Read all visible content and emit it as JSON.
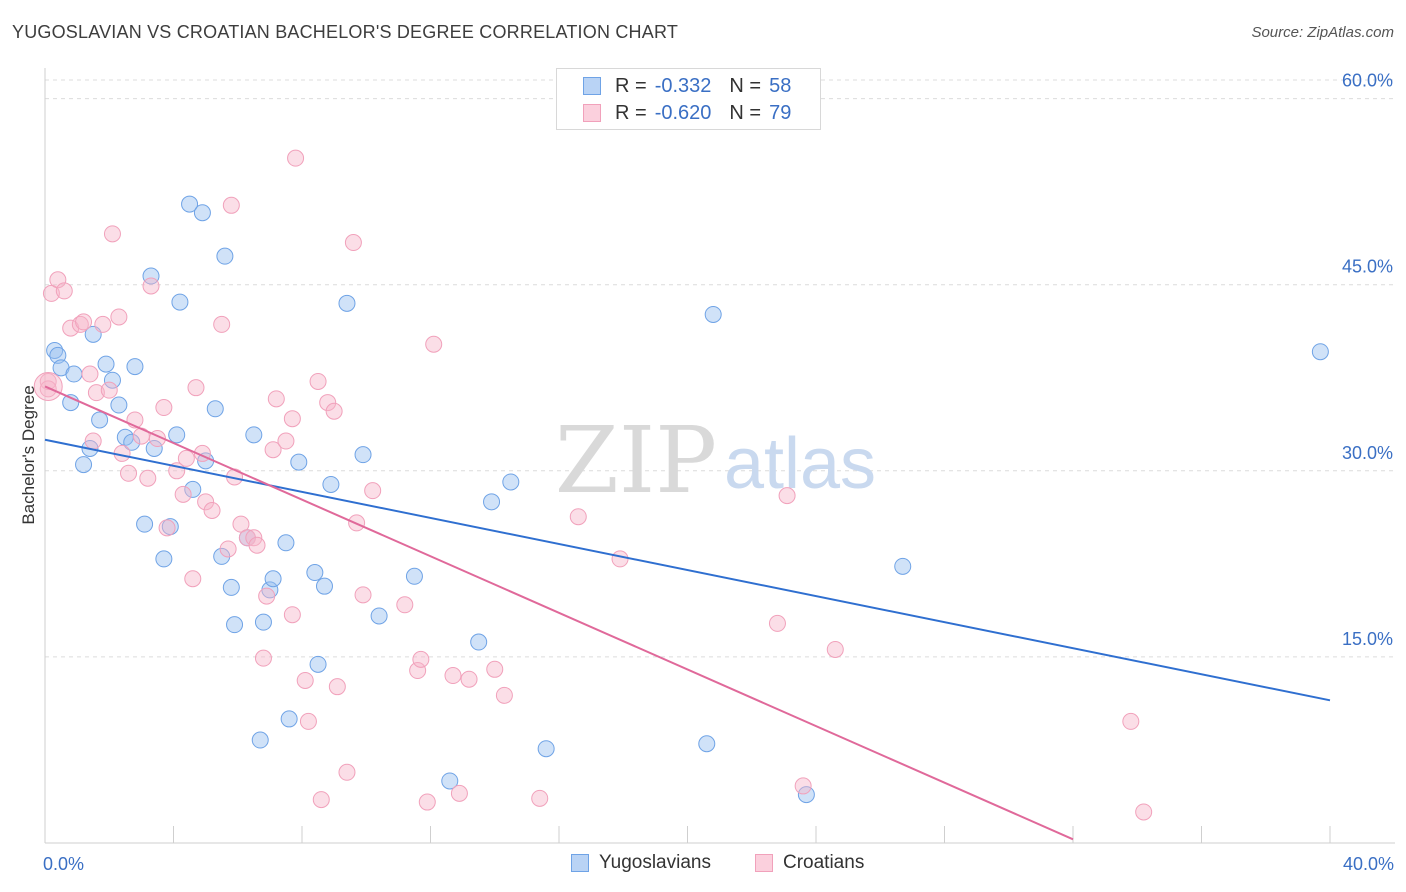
{
  "title": "YUGOSLAVIAN VS CROATIAN BACHELOR'S DEGREE CORRELATION CHART",
  "source": "Source: ZipAtlas.com",
  "watermark": {
    "zip": "ZIP",
    "atlas": "atlas"
  },
  "legend": {
    "series": [
      {
        "r_label": "R =",
        "r_value": "-0.332",
        "n_label": "N =",
        "n_value": "58"
      },
      {
        "r_label": "R =",
        "r_value": "-0.620",
        "n_label": "N =",
        "n_value": "79"
      }
    ]
  },
  "bottom_legend": [
    "Yugoslavians",
    "Croatians"
  ],
  "chart_data": {
    "type": "scatter",
    "title": "YUGOSLAVIAN VS CROATIAN BACHELOR'S DEGREE CORRELATION CHART",
    "xlabel": "",
    "ylabel": "Bachelor's Degree",
    "xlim": [
      0,
      40
    ],
    "ylim": [
      0,
      61.5
    ],
    "x_tick_labels": [
      "0.0%",
      "40.0%"
    ],
    "y_ticks": [
      15,
      30,
      45,
      60
    ],
    "y_tick_labels": [
      "15.0%",
      "30.0%",
      "45.0%",
      "60.0%"
    ],
    "grid": true,
    "colors": {
      "Yugoslavians": "#6fa3e6",
      "Croatians": "#f1a1bb",
      "blue_line": "#2f6fd0",
      "pink_line": "#e0699a",
      "tick_text": "#3a6fc4"
    },
    "series": [
      {
        "name": "Yugoslavians",
        "color": "#6fa3e6",
        "trend": {
          "x": [
            0,
            40
          ],
          "y": [
            32.5,
            11.5
          ]
        },
        "points": [
          [
            0.3,
            39.7
          ],
          [
            0.4,
            39.3
          ],
          [
            0.5,
            38.3
          ],
          [
            0.9,
            37.8
          ],
          [
            0.8,
            35.5
          ],
          [
            1.2,
            30.5
          ],
          [
            1.4,
            31.8
          ],
          [
            1.5,
            41
          ],
          [
            1.7,
            34.1
          ],
          [
            1.9,
            38.6
          ],
          [
            2.1,
            37.3
          ],
          [
            2.3,
            35.3
          ],
          [
            2.5,
            32.7
          ],
          [
            2.7,
            32.3
          ],
          [
            2.8,
            38.4
          ],
          [
            3.1,
            25.7
          ],
          [
            3.3,
            45.7
          ],
          [
            3.4,
            31.8
          ],
          [
            3.7,
            22.9
          ],
          [
            3.9,
            25.5
          ],
          [
            4.1,
            32.9
          ],
          [
            4.2,
            43.6
          ],
          [
            4.5,
            51.5
          ],
          [
            4.6,
            28.5
          ],
          [
            4.9,
            50.8
          ],
          [
            5.0,
            30.8
          ],
          [
            5.3,
            35.0
          ],
          [
            5.5,
            23.1
          ],
          [
            5.6,
            47.3
          ],
          [
            5.8,
            20.6
          ],
          [
            5.9,
            17.6
          ],
          [
            6.3,
            24.6
          ],
          [
            6.5,
            32.9
          ],
          [
            6.7,
            8.3
          ],
          [
            6.8,
            17.8
          ],
          [
            7.0,
            20.4
          ],
          [
            7.1,
            21.3
          ],
          [
            7.5,
            24.2
          ],
          [
            7.6,
            10.0
          ],
          [
            7.9,
            30.7
          ],
          [
            8.4,
            21.8
          ],
          [
            8.5,
            14.4
          ],
          [
            8.7,
            20.7
          ],
          [
            8.9,
            28.9
          ],
          [
            9.4,
            43.5
          ],
          [
            9.9,
            31.3
          ],
          [
            10.4,
            18.3
          ],
          [
            11.5,
            21.5
          ],
          [
            12.6,
            5.0
          ],
          [
            13.5,
            16.2
          ],
          [
            13.9,
            27.5
          ],
          [
            14.5,
            29.1
          ],
          [
            15.6,
            7.6
          ],
          [
            20.6,
            8.0
          ],
          [
            20.8,
            42.6
          ],
          [
            23.7,
            3.9
          ],
          [
            26.7,
            22.3
          ],
          [
            39.7,
            39.6
          ]
        ]
      },
      {
        "name": "Croatians",
        "color": "#f1a1bb",
        "trend": {
          "x": [
            0,
            32
          ],
          "y": [
            36.8,
            0.3
          ]
        },
        "points": [
          [
            0.1,
            37.2
          ],
          [
            0.1,
            36.6
          ],
          [
            0.2,
            44.3
          ],
          [
            0.4,
            45.4
          ],
          [
            0.6,
            44.5
          ],
          [
            0.8,
            41.5
          ],
          [
            1.1,
            41.8
          ],
          [
            1.2,
            42.0
          ],
          [
            1.4,
            37.8
          ],
          [
            1.5,
            32.4
          ],
          [
            1.6,
            36.3
          ],
          [
            1.8,
            41.8
          ],
          [
            2.0,
            36.5
          ],
          [
            2.1,
            49.1
          ],
          [
            2.3,
            42.4
          ],
          [
            2.4,
            31.4
          ],
          [
            2.6,
            29.8
          ],
          [
            2.8,
            34.1
          ],
          [
            3.0,
            32.8
          ],
          [
            3.2,
            29.4
          ],
          [
            3.3,
            44.9
          ],
          [
            3.5,
            32.6
          ],
          [
            3.7,
            35.1
          ],
          [
            3.8,
            25.4
          ],
          [
            4.1,
            30.0
          ],
          [
            4.3,
            28.1
          ],
          [
            4.4,
            31.0
          ],
          [
            4.6,
            21.3
          ],
          [
            4.7,
            36.7
          ],
          [
            4.9,
            31.4
          ],
          [
            5.0,
            27.5
          ],
          [
            5.2,
            26.8
          ],
          [
            5.5,
            41.8
          ],
          [
            5.7,
            23.7
          ],
          [
            5.8,
            51.4
          ],
          [
            5.9,
            29.5
          ],
          [
            6.1,
            25.7
          ],
          [
            6.3,
            24.6
          ],
          [
            6.5,
            24.6
          ],
          [
            6.6,
            24.0
          ],
          [
            6.8,
            14.9
          ],
          [
            6.9,
            19.9
          ],
          [
            7.1,
            31.7
          ],
          [
            7.2,
            35.8
          ],
          [
            7.5,
            32.4
          ],
          [
            7.7,
            18.4
          ],
          [
            7.7,
            34.2
          ],
          [
            7.8,
            55.2
          ],
          [
            8.1,
            13.1
          ],
          [
            8.2,
            9.8
          ],
          [
            8.5,
            37.2
          ],
          [
            8.6,
            3.5
          ],
          [
            8.8,
            35.5
          ],
          [
            9.0,
            34.8
          ],
          [
            9.1,
            12.6
          ],
          [
            9.4,
            5.7
          ],
          [
            9.6,
            48.4
          ],
          [
            9.7,
            25.8
          ],
          [
            9.9,
            20.0
          ],
          [
            10.2,
            28.4
          ],
          [
            11.2,
            19.2
          ],
          [
            11.6,
            13.9
          ],
          [
            11.7,
            14.8
          ],
          [
            11.9,
            3.3
          ],
          [
            12.1,
            40.2
          ],
          [
            12.7,
            13.5
          ],
          [
            12.9,
            4.0
          ],
          [
            13.2,
            13.2
          ],
          [
            14.0,
            14.0
          ],
          [
            14.3,
            11.9
          ],
          [
            15.4,
            3.6
          ],
          [
            16.6,
            26.3
          ],
          [
            17.9,
            22.9
          ],
          [
            22.8,
            17.7
          ],
          [
            23.1,
            28.0
          ],
          [
            23.6,
            4.6
          ],
          [
            24.6,
            15.6
          ],
          [
            33.8,
            9.8
          ],
          [
            34.2,
            2.5
          ]
        ]
      }
    ]
  }
}
